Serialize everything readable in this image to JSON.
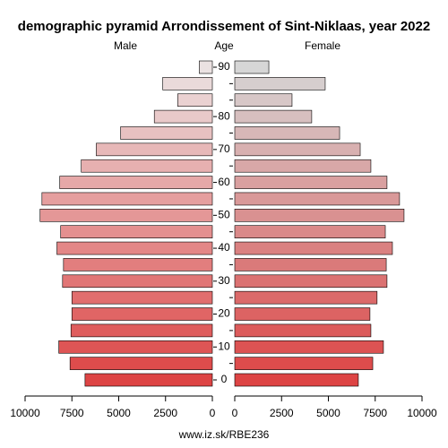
{
  "chart_data": {
    "type": "pyramid",
    "title": "demographic pyramid Arrondissement of Sint-Niklaas, year 2022",
    "axis_label": "Age",
    "source": "www.iz.sk/RBE236",
    "categories": [
      "0",
      null,
      "10",
      null,
      "20",
      null,
      "30",
      null,
      "40",
      null,
      "50",
      null,
      "60",
      null,
      "70",
      null,
      "80",
      null,
      null,
      "90"
    ],
    "series": [
      {
        "name": "Male",
        "colors": [
          "#dd4444",
          "#ebe2e2"
        ],
        "values": [
          6800,
          7600,
          8200,
          7550,
          7500,
          7500,
          8000,
          7950,
          8300,
          8100,
          9200,
          9100,
          8150,
          7000,
          6200,
          4900,
          3100,
          1850,
          2650,
          700
        ],
        "xlim": [
          10000,
          0
        ],
        "xticks": [
          10000,
          7500,
          5000,
          2500,
          0
        ]
      },
      {
        "name": "Female",
        "colors": [
          "#dd4444",
          "#d6d6d6"
        ],
        "values": [
          6600,
          7370,
          7940,
          7270,
          7220,
          7600,
          8130,
          8090,
          8420,
          8040,
          9040,
          8800,
          8130,
          7270,
          6700,
          5600,
          4110,
          3060,
          4830,
          1820
        ],
        "xlim": [
          0,
          10000
        ],
        "xticks": [
          0,
          2500,
          5000,
          7500,
          10000
        ]
      }
    ]
  }
}
